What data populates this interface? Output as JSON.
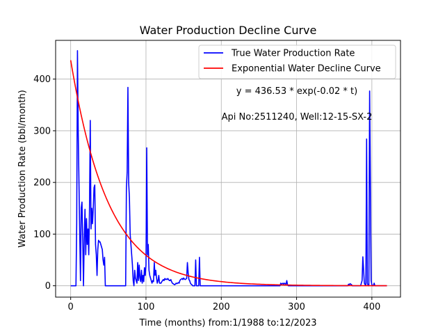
{
  "chart_data": {
    "type": "line",
    "title": "Water Production Decline Curve",
    "xlabel": "Time (months) from:1/1988 to:12/2023",
    "ylabel": "Water Production Rate (bbl/month)",
    "xlim": [
      -20,
      438
    ],
    "ylim": [
      -22,
      475
    ],
    "xticks": [
      0,
      100,
      200,
      300,
      400
    ],
    "yticks": [
      0,
      100,
      200,
      300,
      400
    ],
    "grid": true,
    "legend_position": "top-right",
    "annotations": [
      "y = 436.53 * exp(-0.02 * t)",
      "Api No:2511240, Well:12-15-SX-2"
    ],
    "series": [
      {
        "name": "True Water Production Rate",
        "color": "#0000ff",
        "points": [
          [
            0,
            0
          ],
          [
            7,
            0
          ],
          [
            8,
            120
          ],
          [
            9,
            455
          ],
          [
            10,
            300
          ],
          [
            11,
            200
          ],
          [
            12,
            100
          ],
          [
            13,
            10
          ],
          [
            14,
            150
          ],
          [
            15,
            162
          ],
          [
            16,
            90
          ],
          [
            17,
            0
          ],
          [
            18,
            90
          ],
          [
            19,
            148
          ],
          [
            20,
            60
          ],
          [
            21,
            130
          ],
          [
            22,
            80
          ],
          [
            23,
            110
          ],
          [
            24,
            60
          ],
          [
            25,
            150
          ],
          [
            26,
            320
          ],
          [
            27,
            110
          ],
          [
            28,
            150
          ],
          [
            29,
            120
          ],
          [
            30,
            150
          ],
          [
            31,
            190
          ],
          [
            32,
            195
          ],
          [
            33,
            80
          ],
          [
            34,
            60
          ],
          [
            35,
            20
          ],
          [
            36,
            70
          ],
          [
            37,
            88
          ],
          [
            38,
            85
          ],
          [
            39,
            85
          ],
          [
            40,
            80
          ],
          [
            41,
            75
          ],
          [
            42,
            70
          ],
          [
            43,
            50
          ],
          [
            44,
            40
          ],
          [
            45,
            55
          ],
          [
            46,
            0
          ],
          [
            47,
            0
          ],
          [
            73,
            0
          ],
          [
            74,
            190
          ],
          [
            75,
            220
          ],
          [
            76,
            384
          ],
          [
            77,
            200
          ],
          [
            78,
            170
          ],
          [
            79,
            100
          ],
          [
            80,
            80
          ],
          [
            81,
            60
          ],
          [
            82,
            40
          ],
          [
            83,
            10
          ],
          [
            84,
            0
          ],
          [
            85,
            30
          ],
          [
            86,
            15
          ],
          [
            87,
            10
          ],
          [
            88,
            5
          ],
          [
            89,
            45
          ],
          [
            90,
            10
          ],
          [
            91,
            40
          ],
          [
            92,
            15
          ],
          [
            93,
            8
          ],
          [
            94,
            30
          ],
          [
            95,
            5
          ],
          [
            96,
            20
          ],
          [
            97,
            8
          ],
          [
            98,
            35
          ],
          [
            99,
            20
          ],
          [
            100,
            40
          ],
          [
            101,
            267
          ],
          [
            102,
            60
          ],
          [
            103,
            80
          ],
          [
            104,
            30
          ],
          [
            105,
            20
          ],
          [
            106,
            15
          ],
          [
            107,
            10
          ],
          [
            108,
            5
          ],
          [
            109,
            10
          ],
          [
            110,
            8
          ],
          [
            111,
            45
          ],
          [
            112,
            20
          ],
          [
            113,
            30
          ],
          [
            114,
            15
          ],
          [
            115,
            5
          ],
          [
            116,
            10
          ],
          [
            117,
            20
          ],
          [
            118,
            5
          ],
          [
            119,
            5
          ],
          [
            120,
            5
          ],
          [
            121,
            8
          ],
          [
            122,
            10
          ],
          [
            123,
            12
          ],
          [
            124,
            10
          ],
          [
            125,
            14
          ],
          [
            126,
            12
          ],
          [
            127,
            13
          ],
          [
            128,
            12
          ],
          [
            129,
            14
          ],
          [
            130,
            12
          ],
          [
            131,
            10
          ],
          [
            132,
            10
          ],
          [
            133,
            12
          ],
          [
            134,
            8
          ],
          [
            135,
            5
          ],
          [
            136,
            4
          ],
          [
            137,
            3
          ],
          [
            138,
            2
          ],
          [
            139,
            3
          ],
          [
            140,
            5
          ],
          [
            141,
            4
          ],
          [
            142,
            5
          ],
          [
            143,
            6
          ],
          [
            144,
            5
          ],
          [
            145,
            10
          ],
          [
            146,
            12
          ],
          [
            147,
            13
          ],
          [
            148,
            14
          ],
          [
            149,
            12
          ],
          [
            150,
            15
          ],
          [
            151,
            13
          ],
          [
            152,
            12
          ],
          [
            153,
            13
          ],
          [
            154,
            14
          ],
          [
            155,
            45
          ],
          [
            156,
            25
          ],
          [
            157,
            12
          ],
          [
            158,
            10
          ],
          [
            159,
            5
          ],
          [
            160,
            3
          ],
          [
            161,
            2
          ],
          [
            162,
            0
          ],
          [
            163,
            0
          ],
          [
            164,
            0
          ],
          [
            165,
            0
          ],
          [
            166,
            50
          ],
          [
            167,
            0
          ],
          [
            168,
            0
          ],
          [
            169,
            0
          ],
          [
            170,
            0
          ],
          [
            171,
            55
          ],
          [
            172,
            0
          ],
          [
            278,
            0
          ],
          [
            279,
            5
          ],
          [
            280,
            3
          ],
          [
            281,
            4
          ],
          [
            282,
            5
          ],
          [
            283,
            3
          ],
          [
            284,
            5
          ],
          [
            285,
            4
          ],
          [
            286,
            3
          ],
          [
            287,
            10
          ],
          [
            288,
            2
          ],
          [
            289,
            0
          ],
          [
            368,
            0
          ],
          [
            369,
            3
          ],
          [
            370,
            2
          ],
          [
            371,
            4
          ],
          [
            372,
            3
          ],
          [
            373,
            2
          ],
          [
            374,
            0
          ],
          [
            385,
            0
          ],
          [
            386,
            5
          ],
          [
            387,
            10
          ],
          [
            388,
            56
          ],
          [
            389,
            30
          ],
          [
            390,
            5
          ],
          [
            391,
            2
          ],
          [
            392,
            0
          ],
          [
            393,
            284
          ],
          [
            394,
            5
          ],
          [
            395,
            0
          ],
          [
            396,
            0
          ],
          [
            397,
            377
          ],
          [
            398,
            200
          ],
          [
            399,
            10
          ],
          [
            400,
            2
          ],
          [
            401,
            0
          ],
          [
            402,
            0
          ],
          [
            403,
            5
          ],
          [
            404,
            0
          ],
          [
            405,
            0
          ],
          [
            406,
            0
          ],
          [
            407,
            0
          ],
          [
            408,
            0
          ],
          [
            409,
            0
          ],
          [
            410,
            0
          ],
          [
            411,
            0
          ],
          [
            412,
            0
          ],
          [
            413,
            0
          ],
          [
            414,
            0
          ],
          [
            415,
            0
          ],
          [
            416,
            0
          ],
          [
            417,
            0
          ],
          [
            418,
            0
          ],
          [
            419,
            0
          ],
          [
            420,
            0
          ]
        ]
      },
      {
        "name": "Exponential Water Decline Curve",
        "color": "#ff0000",
        "function": {
          "a": 436.53,
          "b": 0.02,
          "t_start": 0,
          "t_end": 420
        }
      }
    ]
  }
}
